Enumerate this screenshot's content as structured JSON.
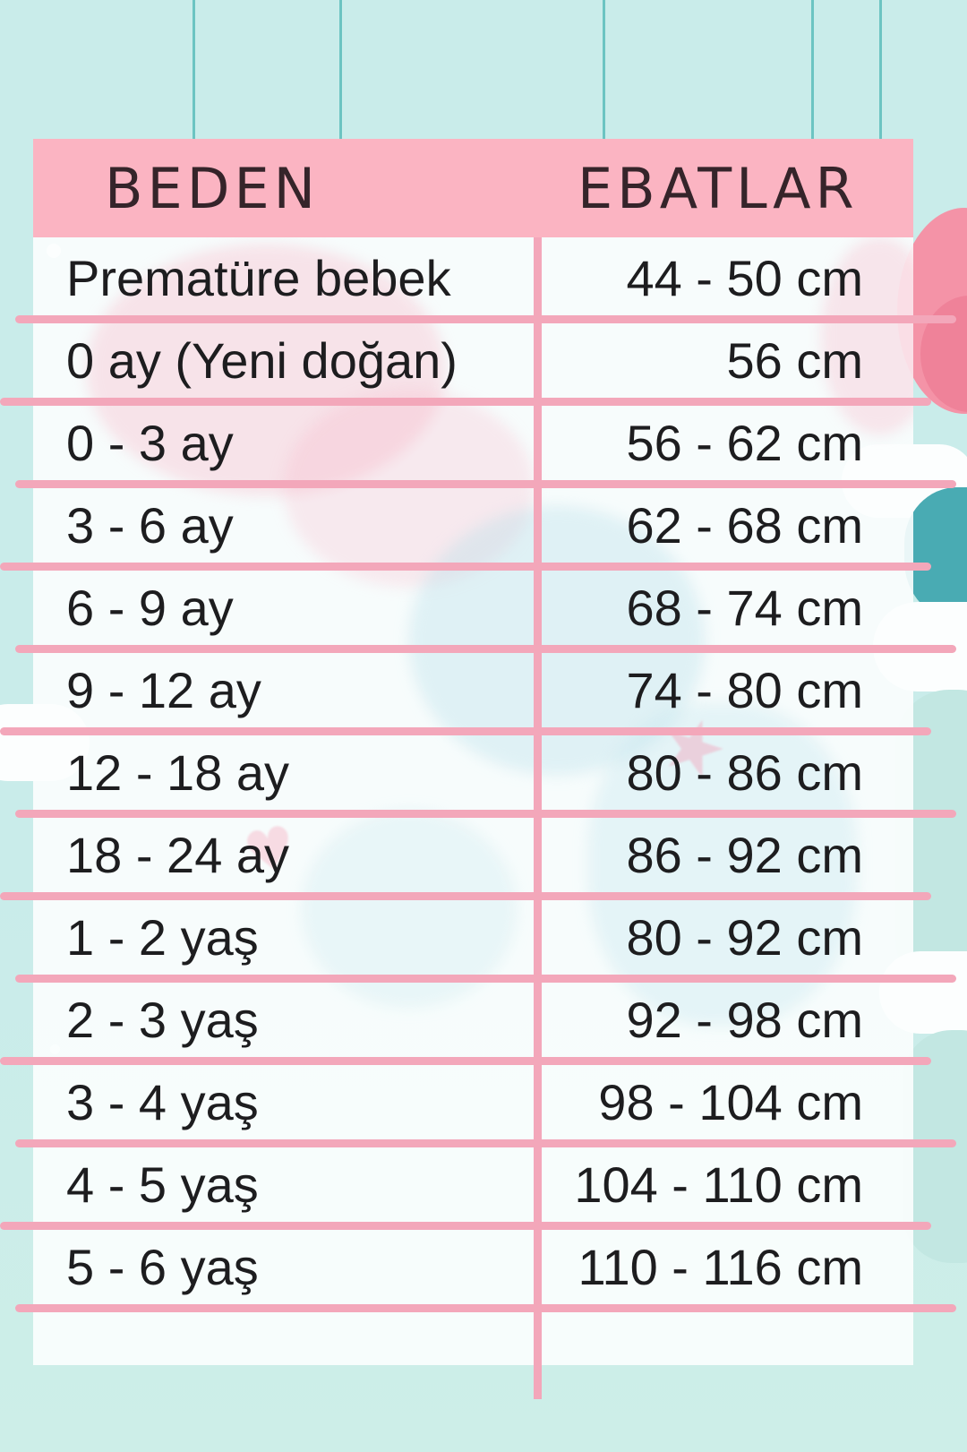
{
  "table": {
    "headers": {
      "size": "BEDEN",
      "dimensions": "EBATLAR"
    },
    "rows": [
      {
        "size": "Prematüre bebek",
        "dimensions": "44 - 50 cm"
      },
      {
        "size": "0 ay (Yeni doğan)",
        "dimensions": "56 cm"
      },
      {
        "size": "0 - 3 ay",
        "dimensions": "56 - 62 cm"
      },
      {
        "size": "3 - 6 ay",
        "dimensions": "62 - 68 cm"
      },
      {
        "size": "6 - 9 ay",
        "dimensions": "68 - 74 cm"
      },
      {
        "size": "9 - 12 ay",
        "dimensions": "74 - 80 cm"
      },
      {
        "size": "12 - 18 ay",
        "dimensions": "80 - 86 cm"
      },
      {
        "size": "18 - 24 ay",
        "dimensions": "86 - 92 cm"
      },
      {
        "size": "1 - 2 yaş",
        "dimensions": "80 - 92 cm"
      },
      {
        "size": "2 - 3 yaş",
        "dimensions": "92 - 98 cm"
      },
      {
        "size": "3 - 4 yaş",
        "dimensions": "98 - 104 cm"
      },
      {
        "size": "4 - 5 yaş",
        "dimensions": "104 - 110 cm"
      },
      {
        "size": "5 - 6 yaş",
        "dimensions": "110 - 116 cm"
      }
    ]
  },
  "chart_data": {
    "type": "table",
    "columns": [
      "BEDEN",
      "EBATLAR"
    ],
    "rows": [
      [
        "Prematüre bebek",
        "44 - 50 cm"
      ],
      [
        "0 ay (Yeni doğan)",
        "56 cm"
      ],
      [
        "0 - 3 ay",
        "56 - 62 cm"
      ],
      [
        "3 - 6 ay",
        "62 - 68 cm"
      ],
      [
        "6 - 9 ay",
        "68 - 74 cm"
      ],
      [
        "9 - 12 ay",
        "74 - 80 cm"
      ],
      [
        "12 - 18 ay",
        "80 - 86 cm"
      ],
      [
        "18 - 24 ay",
        "86 - 92 cm"
      ],
      [
        "1 - 2 yaş",
        "80 - 92 cm"
      ],
      [
        "2 - 3 yaş",
        "92 - 98 cm"
      ],
      [
        "3 - 4 yaş",
        "98 - 104 cm"
      ],
      [
        "4 - 5 yaş",
        "104 - 110 cm"
      ],
      [
        "5 - 6 yaş",
        "110 - 116 cm"
      ]
    ]
  },
  "decorations": {
    "star_glyph": "★",
    "heart_glyph": "♥"
  },
  "palette": {
    "bg": "#c9ecea",
    "bgBottom": "#cdeee8",
    "headerPink": "#fbb4c2",
    "linePink": "#f3a7ba",
    "rowWhite": "rgba(252,254,254,0.90)",
    "textDark": "#1d1d1f",
    "headerText": "#35242a",
    "stringTeal": "#6cc4c2",
    "accentTeal": "#49abb3",
    "accentPink": "#f493a7",
    "paleTeal": "#c2e7e2"
  }
}
